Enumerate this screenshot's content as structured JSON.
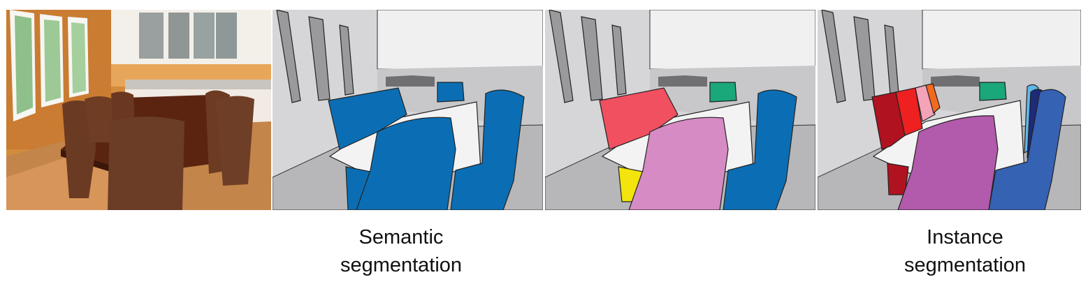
{
  "figure": {
    "panels": [
      {
        "name": "photo"
      },
      {
        "name": "semantic-seg-map"
      },
      {
        "name": "third-seg-map"
      },
      {
        "name": "instance-seg-map"
      }
    ],
    "captions": {
      "semantic": {
        "line1": "Semantic",
        "line2": "segmentation"
      },
      "instance": {
        "line1": "Instance",
        "line2": "segmentation"
      }
    },
    "colors": {
      "background_wall": "#d6d6d8",
      "ceiling_white": "#f0f0f0",
      "floor_gray": "#b7b7b9",
      "table_white": "#f3f3f3",
      "chair_blue": "#0b6eb4",
      "chair_salmon": "#f0505f",
      "chair_pink": "#d68bc4",
      "chair_yellow": "#f2e40c",
      "chair_green": "#1aa77a",
      "chair_darkred": "#b0121f",
      "chair_red": "#ee2020",
      "chair_lightpink": "#f4a3b9",
      "chair_orange": "#f36a1e",
      "chair_magenta": "#b25aac",
      "chair_royal": "#3562b3",
      "chair_navy": "#1f2a7a",
      "chair_skyblue": "#5fb8e7"
    }
  }
}
